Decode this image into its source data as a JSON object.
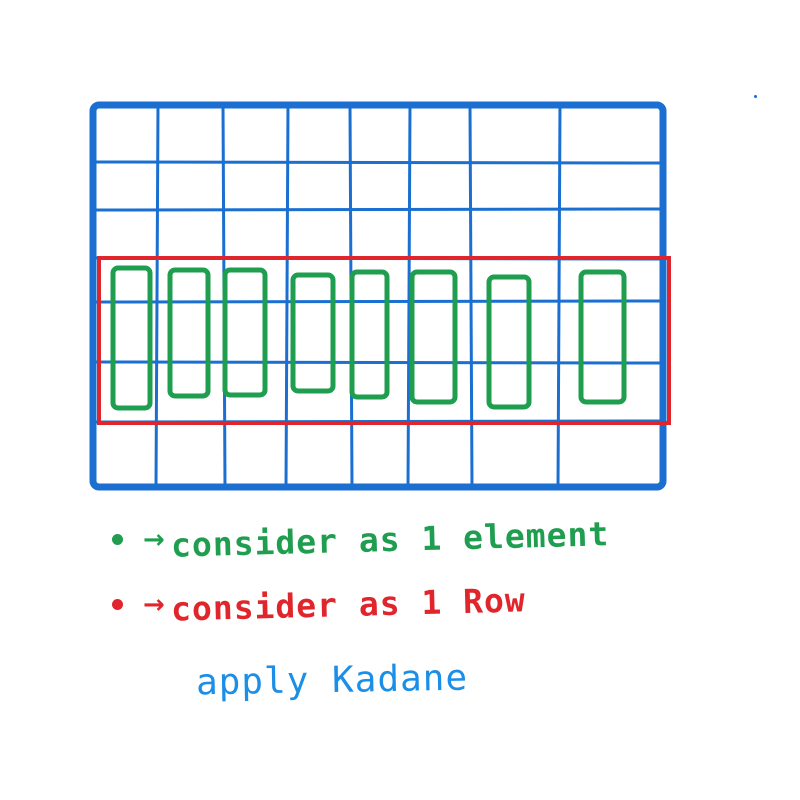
{
  "colors": {
    "grid": "#1a6fd1",
    "row_highlight": "#e0262c",
    "element_boxes": "#1f9e4f",
    "caption": "#1b8fe8"
  },
  "grid": {
    "columns": 8,
    "rows": 6
  },
  "highlighted_rows": [
    4,
    5
  ],
  "legend": [
    {
      "marker": "green-dot",
      "arrow": "→",
      "text": "consider as 1 element",
      "color": "#1f9e4f"
    },
    {
      "marker": "red-dot",
      "arrow": "→",
      "text": "consider as 1 Row",
      "color": "#e0262c"
    }
  ],
  "caption": "apply Kadane"
}
